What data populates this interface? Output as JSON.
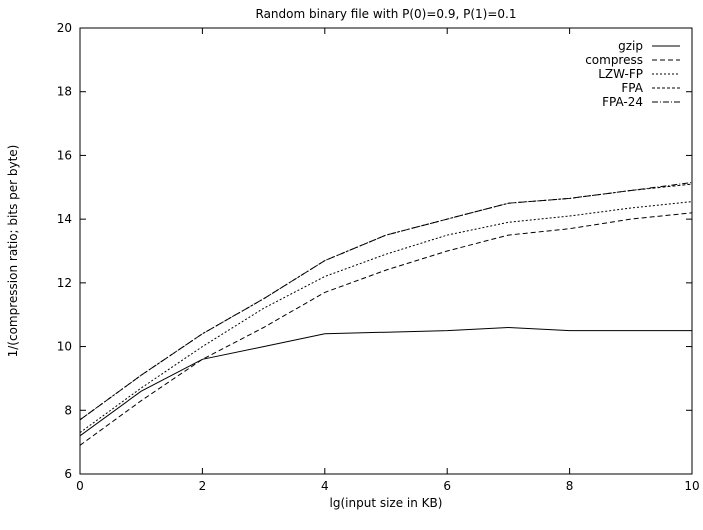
{
  "chart_data": {
    "type": "line",
    "title": "Random binary file with P(0)=0.9, P(1)=0.1",
    "xlabel": "lg(input size in KB)",
    "ylabel": "1/(compression ratio; bits per byte)",
    "xlim": [
      0,
      10
    ],
    "ylim": [
      6,
      20
    ],
    "xticks": [
      0,
      2,
      4,
      6,
      8,
      10
    ],
    "yticks": [
      6,
      8,
      10,
      12,
      14,
      16,
      18,
      20
    ],
    "grid": false,
    "legend_position": "top-right",
    "x": [
      0,
      1,
      2,
      3,
      4,
      5,
      6,
      7,
      8,
      9,
      10
    ],
    "series": [
      {
        "name": "gzip",
        "dash": "solid",
        "values": [
          7.2,
          8.6,
          9.6,
          10.0,
          10.4,
          10.45,
          10.5,
          10.6,
          10.5,
          10.5,
          10.5
        ]
      },
      {
        "name": "compress",
        "dash": "dashed",
        "values": [
          6.9,
          8.3,
          9.6,
          10.6,
          11.7,
          12.4,
          13.0,
          13.5,
          13.7,
          14.0,
          14.2
        ]
      },
      {
        "name": "LZW-FP",
        "dash": "dotted",
        "values": [
          7.3,
          8.7,
          10.0,
          11.2,
          12.2,
          12.9,
          13.5,
          13.9,
          14.1,
          14.35,
          14.55
        ]
      },
      {
        "name": "FPA",
        "dash": "short-dashed",
        "values": [
          7.7,
          9.1,
          10.4,
          11.5,
          12.7,
          13.5,
          14.0,
          14.5,
          14.65,
          14.9,
          15.1
        ]
      },
      {
        "name": "FPA-24",
        "dash": "dash-dot",
        "values": [
          7.7,
          9.1,
          10.4,
          11.5,
          12.7,
          13.5,
          14.0,
          14.5,
          14.65,
          14.9,
          15.15
        ]
      }
    ]
  }
}
